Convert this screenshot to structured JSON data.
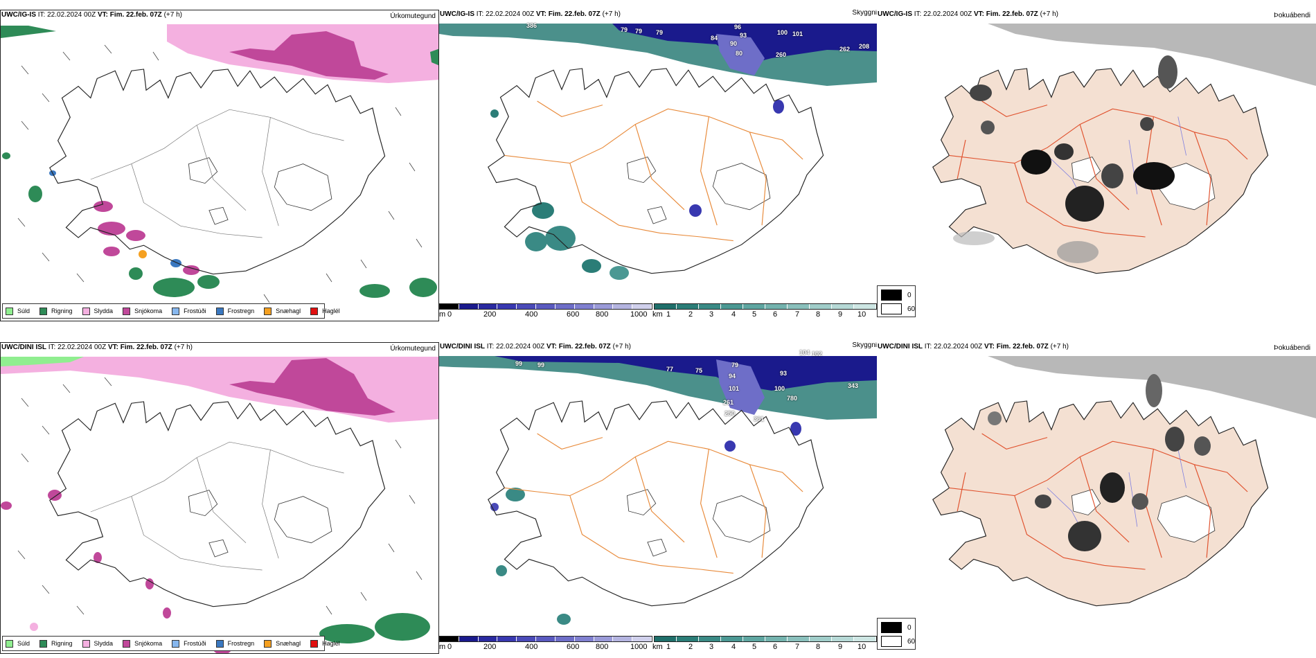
{
  "rows": [
    {
      "model": "UWC/IG-IS",
      "it_label": "IT:",
      "it_value": "22.02.2024 00Z",
      "vt_label": "VT:",
      "vt_value": "Fim. 22.feb. 07Z",
      "lead": "(+7 h)",
      "vis_numbers": [
        "79",
        "79",
        "79",
        "84",
        "96",
        "93",
        "90",
        "80",
        "100",
        "101",
        "260",
        "262",
        "208",
        "262",
        "386"
      ]
    },
    {
      "model": "UWC/DINI ISL",
      "it_label": "IT:",
      "it_value": "22.02.2024 00Z",
      "vt_label": "VT:",
      "vt_value": "Fim. 22.feb. 07Z",
      "lead": "(+7 h)",
      "vis_numbers": [
        "99",
        "99",
        "77",
        "75",
        "79",
        "94",
        "93",
        "101",
        "100",
        "780",
        "343",
        "361",
        "261",
        "250",
        "102",
        "104"
      ]
    }
  ],
  "panel_titles": {
    "precip_type": "Úrkomutegund",
    "visibility": "Skyggni",
    "fog": "Þokuábendi"
  },
  "precip_legend": [
    {
      "label": "Súld",
      "color": "#90ee90"
    },
    {
      "label": "Rigning",
      "color": "#2e8b57"
    },
    {
      "label": "Slydda",
      "color": "#f4b0e0"
    },
    {
      "label": "Snjókoma",
      "color": "#c0489a"
    },
    {
      "label": "Frostúði",
      "color": "#87b7ee"
    },
    {
      "label": "Frostregn",
      "color": "#3a78c0"
    },
    {
      "label": "Snæhagl",
      "color": "#f5a020"
    },
    {
      "label": "Haglél",
      "color": "#e01010"
    }
  ],
  "ceiling_bar": {
    "unit": "m",
    "ticks": [
      "0",
      "200",
      "400",
      "600",
      "800",
      "1000"
    ],
    "colors": [
      "#000000",
      "#1a1a8c",
      "#2a2aa0",
      "#3838b0",
      "#4a4ab8",
      "#5a5ac0",
      "#6e6ec8",
      "#8080d0",
      "#9a9ad8",
      "#b4b4e0",
      "#d0d0ec"
    ]
  },
  "vis_bar": {
    "unit": "km",
    "ticks": [
      "1",
      "2",
      "3",
      "4",
      "5",
      "6",
      "7",
      "8",
      "9",
      "10"
    ],
    "colors": [
      "#1f6f6a",
      "#2b7d77",
      "#3a8a85",
      "#4b9893",
      "#5fa6a1",
      "#74b3ae",
      "#8ac0bc",
      "#a0cdc9",
      "#b6d9d6",
      "#cde6e3"
    ]
  },
  "fog_legend": [
    {
      "value": "0",
      "color": "#000000"
    },
    {
      "value": "60",
      "color": "#ffffff"
    }
  ]
}
